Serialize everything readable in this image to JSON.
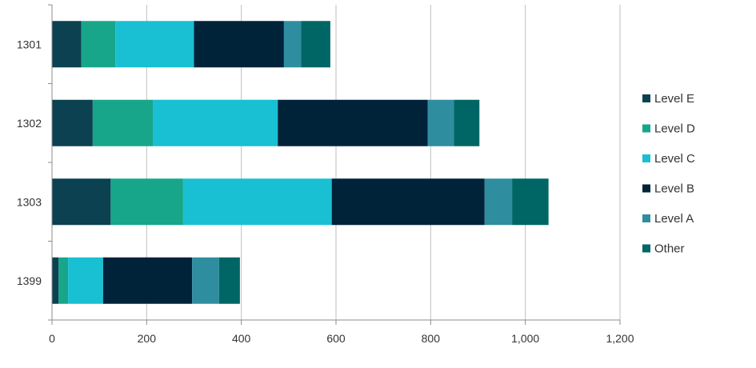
{
  "chart_data": {
    "type": "bar",
    "orientation": "horizontal",
    "stacked": true,
    "title": "",
    "xlabel": "",
    "ylabel": "",
    "categories": [
      "1301",
      "1302",
      "1303",
      "1399"
    ],
    "xlim": [
      0,
      1200
    ],
    "x_ticks": [
      0,
      200,
      400,
      600,
      800,
      1000,
      1200
    ],
    "x_tick_labels": [
      "0",
      "200",
      "400",
      "600",
      "800",
      "1,000",
      "1,200"
    ],
    "grid": "vertical",
    "legend_position": "right",
    "series": [
      {
        "name": "Level E",
        "color": "#0b4150",
        "values": [
          62,
          86,
          124,
          14
        ]
      },
      {
        "name": "Level D",
        "color": "#17a68a",
        "values": [
          72,
          127,
          153,
          20
        ]
      },
      {
        "name": "Level C",
        "color": "#19bfd2",
        "values": [
          166,
          264,
          314,
          74
        ]
      },
      {
        "name": "Level B",
        "color": "#01233a",
        "values": [
          190,
          317,
          323,
          188
        ]
      },
      {
        "name": "Level A",
        "color": "#2f8da0",
        "values": [
          36,
          55,
          58,
          57
        ]
      },
      {
        "name": "Other",
        "color": "#006665",
        "values": [
          62,
          54,
          77,
          44
        ]
      }
    ]
  }
}
